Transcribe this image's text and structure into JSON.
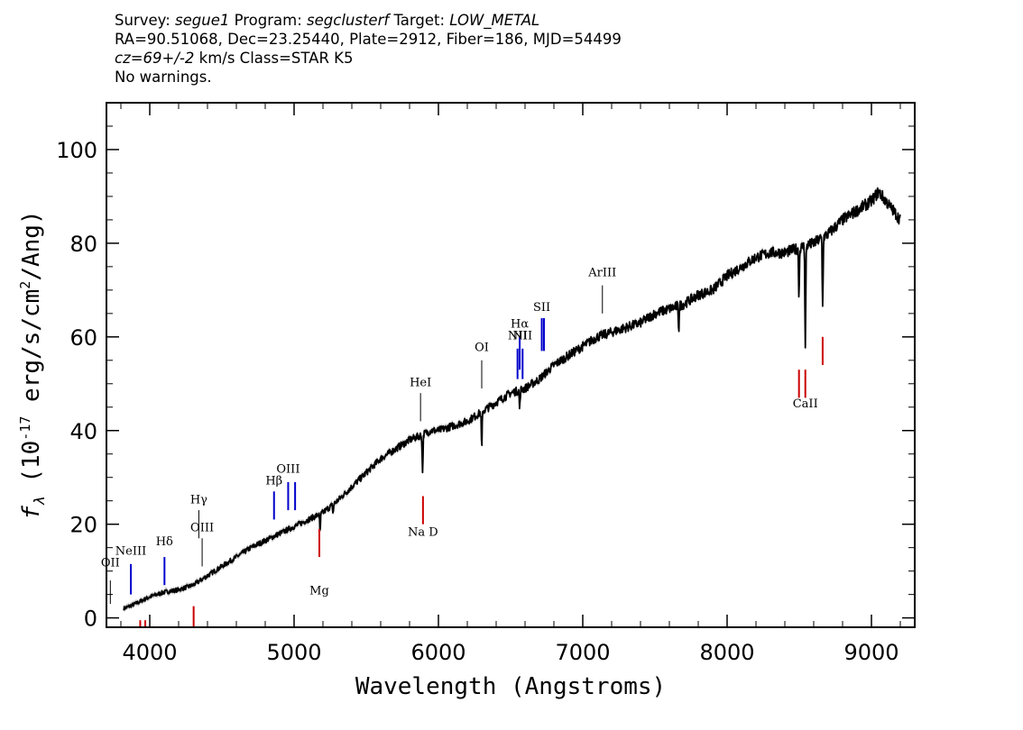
{
  "header": {
    "survey_label": "Survey:",
    "survey": "segue1",
    "program_label": "Program:",
    "program": "segclusterf",
    "target_label": "Target:",
    "target": "LOW_METAL",
    "line2": "RA=90.51068, Dec=23.25440, Plate=2912, Fiber=186, MJD=54499",
    "cz": "cz=69+/-2",
    "line3_rest": "km/s Class=STAR K5",
    "line4": "No warnings."
  },
  "chart_data": {
    "type": "line",
    "title": "",
    "xlabel": "Wavelength (Angstroms)",
    "ylabel": "fλ (10^-17 erg/s/cm^2/Ang)",
    "xlim": [
      3700,
      9300
    ],
    "ylim": [
      -2,
      110
    ],
    "x_ticks": [
      4000,
      5000,
      6000,
      7000,
      8000,
      9000
    ],
    "y_ticks": [
      0,
      20,
      40,
      60,
      80,
      100
    ],
    "x_tick_labels": [
      "4000",
      "5000",
      "6000",
      "7000",
      "8000",
      "9000"
    ],
    "y_tick_labels": [
      "0",
      "20",
      "40",
      "60",
      "80",
      "100"
    ],
    "grid": false,
    "series": [
      {
        "color": "#000000",
        "x": [
          3820,
          3900,
          4000,
          4100,
          4200,
          4300,
          4400,
          4500,
          4600,
          4700,
          4800,
          4900,
          5000,
          5100,
          5200,
          5300,
          5400,
          5500,
          5600,
          5700,
          5800,
          5880,
          5950,
          6000,
          6100,
          6200,
          6300,
          6400,
          6500,
          6600,
          6700,
          6800,
          6900,
          7000,
          7100,
          7200,
          7300,
          7400,
          7500,
          7600,
          7700,
          7800,
          7900,
          8000,
          8100,
          8200,
          8300,
          8400,
          8500,
          8600,
          8700,
          8800,
          8900,
          9000,
          9050,
          9100,
          9150,
          9200
        ],
        "y": [
          2,
          3,
          4.5,
          5.5,
          6,
          7,
          9,
          11,
          13,
          15,
          16.5,
          18,
          19.5,
          21,
          22.5,
          25,
          28,
          31,
          34,
          36,
          38,
          39,
          40,
          40,
          41,
          42,
          44,
          46,
          48,
          49,
          51,
          54,
          56,
          58,
          60,
          61,
          62,
          63,
          65,
          66,
          67,
          69,
          70,
          73,
          75,
          77,
          78,
          78,
          79,
          80,
          82,
          85,
          87,
          89,
          91,
          89,
          87,
          85
        ]
      }
    ],
    "absorption_dips": [
      {
        "x": 5180,
        "depth": 4
      },
      {
        "x": 5270,
        "depth": 2
      },
      {
        "x": 5890,
        "depth": 8
      },
      {
        "x": 6300,
        "depth": 8
      },
      {
        "x": 6563,
        "depth": 4
      },
      {
        "x": 7665,
        "depth": 5
      },
      {
        "x": 8498,
        "depth": 10
      },
      {
        "x": 8542,
        "depth": 22
      },
      {
        "x": 8662,
        "depth": 15
      }
    ],
    "line_labels": [
      {
        "text": "OII",
        "x": 3727,
        "y1": 3,
        "y2": 8,
        "ty": 11,
        "color": "#000000"
      },
      {
        "text": "NeIII",
        "x": 3869,
        "y1": 5,
        "y2": 11.5,
        "ty": 13.5,
        "color": "#0000cc"
      },
      {
        "text": "Hδ",
        "x": 4102,
        "y1": 7,
        "y2": 13,
        "ty": 15.5,
        "color": "#0000cc"
      },
      {
        "text": "Hγ",
        "x": 4340,
        "y1": 17,
        "y2": 23,
        "ty": 24.5,
        "color": "#000000"
      },
      {
        "text": "OIII",
        "x": 4363,
        "y1": 11,
        "y2": 17,
        "ty": 18.5,
        "color": "#000000"
      },
      {
        "text": "Hβ",
        "x": 4861,
        "y1": 21,
        "y2": 27,
        "ty": 28.5,
        "color": "#0000cc"
      },
      {
        "text": "OIII",
        "x": 4959,
        "y1": 23,
        "y2": 29,
        "ty": 31,
        "color": "#0000cc"
      },
      {
        "text": "HeI",
        "x": 5876,
        "y1": 42,
        "y2": 48,
        "ty": 49.5,
        "color": "#000000"
      },
      {
        "text": "OI",
        "x": 6300,
        "y1": 49,
        "y2": 55,
        "ty": 57,
        "color": "#000000"
      },
      {
        "text": "NII",
        "x": 6548,
        "y1": 51,
        "y2": 57.5,
        "ty": 59.5,
        "color": "#0000cc"
      },
      {
        "text": "Hα",
        "x": 6563,
        "y1": 53,
        "y2": 60,
        "ty": 62,
        "color": "#0000cc"
      },
      {
        "text": "NII",
        "x": 6583,
        "y1": 51,
        "y2": 57.5,
        "ty": 59.5,
        "color": "#0000cc"
      },
      {
        "text": "SII",
        "x": 6716,
        "y1": 57,
        "y2": 64,
        "ty": 65.5,
        "color": "#0000cc"
      },
      {
        "text": "ArIII",
        "x": 7136,
        "y1": 65,
        "y2": 71,
        "ty": 73,
        "color": "#000000"
      },
      {
        "text": "Na D",
        "x": 5893,
        "y1": 20,
        "y2": 26,
        "ty": 17.5,
        "color": "#cc0000"
      },
      {
        "text": "Mg",
        "x": 5175,
        "y1": 13,
        "y2": 19,
        "ty": 5,
        "color": "#cc0000"
      },
      {
        "text": "CaII",
        "x": 8542,
        "y1": 47,
        "y2": 53,
        "ty": 45,
        "color": "#cc0000"
      }
    ],
    "extra_marks": [
      {
        "x": 6731,
        "y1": 57,
        "y2": 64,
        "color": "#0000cc"
      },
      {
        "x": 5007,
        "y1": 23,
        "y2": 29,
        "color": "#0000cc"
      },
      {
        "x": 8498,
        "y1": 47,
        "y2": 53,
        "color": "#cc0000"
      },
      {
        "x": 8662,
        "y1": 54,
        "y2": 60,
        "color": "#cc0000"
      },
      {
        "x": 4304,
        "y1": -2,
        "y2": 2.5,
        "color": "#cc0000"
      },
      {
        "x": 3934,
        "y1": -2,
        "y2": -0.5,
        "color": "#cc0000"
      },
      {
        "x": 3969,
        "y1": -2,
        "y2": -0.5,
        "color": "#cc0000"
      }
    ]
  }
}
